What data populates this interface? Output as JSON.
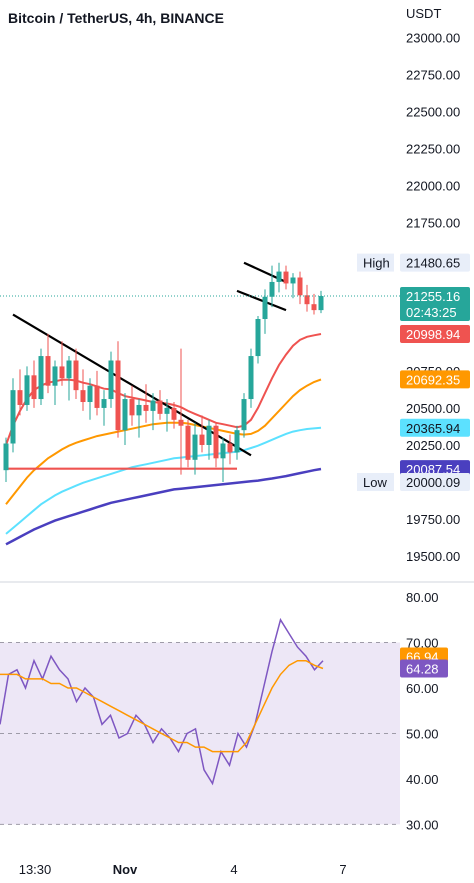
{
  "header": {
    "symbol_title": "Bitcoin / TetherUS, 4h, BINANCE",
    "currency": "USDT"
  },
  "colors": {
    "up": "#26a69a",
    "down": "#ef5350",
    "ma_fast": "#ef5350",
    "ma_mid": "#ff9800",
    "ma_slow": "#5ce1ff",
    "ma_long": "#4a3fbf",
    "rsi": "#7e57c2",
    "rsi_ma": "#ff9800",
    "rsi_band": "#ede7f6"
  },
  "chart_data": [
    {
      "type": "candlestick",
      "title": "Bitcoin / TetherUS, 4h, BINANCE",
      "y_unit": "USDT",
      "ylim": [
        19420,
        23050
      ],
      "y_ticks": [
        "23000.00",
        "22750.00",
        "22500.00",
        "22250.00",
        "22000.00",
        "21750.00",
        "21500.00",
        "21250.00",
        "21000.00",
        "20750.00",
        "20500.00",
        "20250.00",
        "20000.00",
        "19750.00",
        "19500.00"
      ],
      "x_ticks": [
        "13:30",
        "Nov",
        "4",
        "7"
      ],
      "candles": [
        [
          20080,
          20300,
          20000,
          20260
        ],
        [
          20260,
          20700,
          20200,
          20620
        ],
        [
          20620,
          20760,
          20450,
          20520
        ],
        [
          20520,
          20780,
          20480,
          20720
        ],
        [
          20720,
          20820,
          20500,
          20560
        ],
        [
          20560,
          20900,
          20520,
          20850
        ],
        [
          20850,
          21000,
          20600,
          20650
        ],
        [
          20650,
          20820,
          20520,
          20780
        ],
        [
          20780,
          20950,
          20650,
          20700
        ],
        [
          20700,
          20850,
          20550,
          20820
        ],
        [
          20820,
          20900,
          20560,
          20620
        ],
        [
          20620,
          20760,
          20480,
          20540
        ],
        [
          20540,
          20700,
          20420,
          20650
        ],
        [
          20650,
          20750,
          20450,
          20500
        ],
        [
          20500,
          20620,
          20380,
          20560
        ],
        [
          20560,
          20880,
          20500,
          20820
        ],
        [
          20820,
          20950,
          20300,
          20350
        ],
        [
          20350,
          20600,
          20250,
          20560
        ],
        [
          20560,
          20650,
          20380,
          20450
        ],
        [
          20450,
          20560,
          20300,
          20520
        ],
        [
          20520,
          20660,
          20400,
          20480
        ],
        [
          20480,
          20600,
          20350,
          20550
        ],
        [
          20550,
          20620,
          20420,
          20460
        ],
        [
          20460,
          20560,
          20340,
          20500
        ],
        [
          20500,
          20540,
          20360,
          20420
        ],
        [
          20420,
          20900,
          20050,
          20380
        ],
        [
          20380,
          20420,
          20100,
          20150
        ],
        [
          20150,
          20400,
          20050,
          20320
        ],
        [
          20320,
          20450,
          20200,
          20250
        ],
        [
          20250,
          20420,
          20150,
          20380
        ],
        [
          20380,
          20400,
          20100,
          20160
        ],
        [
          20160,
          20300,
          20000,
          20260
        ],
        [
          20260,
          20320,
          20120,
          20200
        ],
        [
          20200,
          20380,
          20150,
          20350
        ],
        [
          20350,
          20600,
          20300,
          20560
        ],
        [
          20560,
          20900,
          20500,
          20850
        ],
        [
          20850,
          21120,
          20800,
          21100
        ],
        [
          21100,
          21300,
          21000,
          21250
        ],
        [
          21250,
          21460,
          21180,
          21350
        ],
        [
          21350,
          21480,
          21280,
          21420
        ],
        [
          21420,
          21460,
          21300,
          21340
        ],
        [
          21340,
          21410,
          21240,
          21380
        ],
        [
          21380,
          21420,
          21200,
          21260
        ],
        [
          21260,
          21330,
          21150,
          21200
        ],
        [
          21200,
          21270,
          21130,
          21160
        ],
        [
          21160,
          21290,
          21140,
          21255
        ]
      ],
      "moving_averages": [
        {
          "values": [
            20250,
            20380,
            20480,
            20560,
            20620,
            20650,
            20670,
            20680,
            20690,
            20690,
            20685,
            20670,
            20660,
            20645,
            20630,
            20625,
            20600,
            20580,
            20570,
            20560,
            20550,
            20540,
            20535,
            20530,
            20520,
            20505,
            20480,
            20460,
            20440,
            20420,
            20400,
            20390,
            20380,
            20370,
            20380,
            20420,
            20500,
            20600,
            20700,
            20790,
            20860,
            20920,
            20960,
            20980,
            20990,
            20999
          ]
        },
        {
          "values": [
            19850,
            19910,
            19970,
            20030,
            20080,
            20120,
            20160,
            20190,
            20220,
            20245,
            20265,
            20280,
            20295,
            20310,
            20320,
            20330,
            20340,
            20350,
            20360,
            20370,
            20380,
            20390,
            20395,
            20400,
            20400,
            20400,
            20395,
            20385,
            20375,
            20365,
            20355,
            20345,
            20335,
            20325,
            20320,
            20325,
            20345,
            20380,
            20430,
            20480,
            20530,
            20580,
            20620,
            20650,
            20675,
            20692
          ]
        },
        {
          "values": [
            19650,
            19690,
            19730,
            19770,
            19810,
            19850,
            19880,
            19910,
            19935,
            19955,
            19975,
            19995,
            20010,
            20025,
            20040,
            20055,
            20070,
            20085,
            20100,
            20110,
            20120,
            20130,
            20140,
            20150,
            20160,
            20165,
            20170,
            20175,
            20180,
            20185,
            20190,
            20195,
            20200,
            20205,
            20215,
            20230,
            20245,
            20265,
            20285,
            20305,
            20325,
            20340,
            20350,
            20358,
            20362,
            20366
          ]
        },
        {
          "values": [
            19580,
            19605,
            19630,
            19655,
            19680,
            19700,
            19720,
            19740,
            19755,
            19770,
            19785,
            19800,
            19815,
            19830,
            19845,
            19860,
            19870,
            19880,
            19890,
            19900,
            19910,
            19920,
            19930,
            19940,
            19950,
            19955,
            19960,
            19965,
            19970,
            19975,
            19980,
            19985,
            19990,
            19995,
            20000,
            20005,
            20010,
            20017,
            20024,
            20032,
            20040,
            20050,
            20060,
            20070,
            20080,
            20088
          ]
        }
      ],
      "drawings": [
        {
          "kind": "trendline",
          "from": [
            1,
            21130
          ],
          "to": [
            35,
            20180
          ]
        },
        {
          "kind": "support",
          "from": [
            0,
            20090
          ],
          "to": [
            33,
            20090
          ]
        },
        {
          "kind": "flag-top",
          "from": [
            34,
            21480
          ],
          "to": [
            40,
            21350
          ]
        },
        {
          "kind": "flag-bottom",
          "from": [
            33,
            21290
          ],
          "to": [
            40,
            21160
          ]
        }
      ],
      "price_tags": [
        {
          "label": "High",
          "value": "21480.65",
          "price": 21480.65,
          "style": "plain"
        },
        {
          "value": "21255.16",
          "sub": "02:43:25",
          "price": 21255.16,
          "style": "up"
        },
        {
          "value": "20998.94",
          "price": 20998.94,
          "style": "down"
        },
        {
          "value": "20692.35",
          "price": 20692.35,
          "style": "orange"
        },
        {
          "value": "20365.94",
          "price": 20365.94,
          "style": "cyan"
        },
        {
          "value": "20087.54",
          "price": 20087.54,
          "style": "navy"
        },
        {
          "label": "Low",
          "value": "20000.09",
          "price": 20000.09,
          "style": "plain"
        }
      ]
    },
    {
      "type": "line",
      "title": "",
      "ylim": [
        27,
        82
      ],
      "y_ticks": [
        "80.00",
        "70.00",
        "60.00",
        "50.00",
        "40.00",
        "30.00"
      ],
      "bands": [
        70,
        50,
        30
      ],
      "series": [
        {
          "values": [
            52,
            63,
            64,
            60,
            66,
            62,
            67,
            64,
            62,
            57,
            60,
            58,
            52,
            54,
            49,
            50,
            54,
            52,
            48,
            51,
            49,
            46,
            50,
            51,
            42,
            39,
            46,
            43,
            50,
            47,
            52,
            60,
            68,
            75,
            72,
            69,
            67,
            64,
            66
          ]
        },
        {
          "values": [
            63,
            63,
            63,
            62,
            62,
            62,
            61,
            61,
            60,
            60,
            59,
            58,
            57,
            56,
            55,
            54,
            53,
            52,
            51,
            50,
            49,
            48,
            48,
            47,
            47,
            46,
            46,
            46,
            46,
            48,
            52,
            56,
            60,
            63,
            65,
            66,
            66,
            65,
            64.28
          ]
        }
      ],
      "value_tags": [
        {
          "value": "66.94",
          "price": 66.94,
          "style": "orange"
        },
        {
          "value": "64.28",
          "price": 64.28,
          "style": "purple"
        }
      ]
    }
  ]
}
